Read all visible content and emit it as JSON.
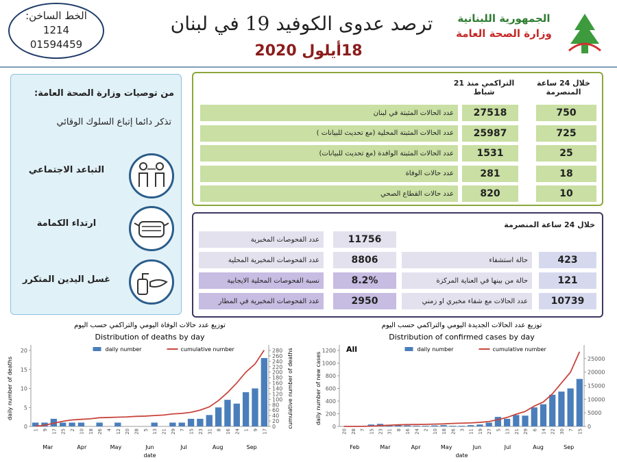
{
  "header": {
    "hotline_label": "الخط الساخن:",
    "hotline_numbers": [
      "1214",
      "01594459"
    ],
    "title": "ترصد عدوى الكوفيد 19 في لبنان",
    "date": "18أيلول 2020",
    "ministry": [
      "الجمهورية اللبنانية",
      "وزارة الصحة العامة"
    ]
  },
  "recommendations": {
    "title": "من توصيات وزارة الصحة العامة:",
    "subtitle": "تذكر دائما إتباع السلوك الوقائي",
    "items": [
      "التباعد الاجتماعي",
      "ارتداء الكمامة",
      "غسل اليدين المتكرر"
    ]
  },
  "table": {
    "headers": [
      "خلال 24 ساعة المنصرمة",
      "التراكمي منذ 21 شباط"
    ],
    "rows": [
      [
        "عدد الحالات المثبتة في لبنان",
        27518,
        750
      ],
      [
        "عدد الحالات المثبتة المحلية (مع تحديث للبيانات )",
        25987,
        725
      ],
      [
        "عدد الحالات المثبتة الوافدة (مع تحديث للبيانات)",
        1531,
        25
      ],
      [
        "عدد حالات الوفاة",
        281,
        18
      ],
      [
        "عدد حالات القطاع الصحي",
        820,
        10
      ]
    ]
  },
  "last24": {
    "title": "خلال 24 ساعة المنصرمة",
    "hospital": [
      [
        "حالة استشفاء",
        423
      ],
      [
        "حالة من بينها في العناية المركزة",
        121
      ],
      [
        "عدد الحالات مع شفاء مخبري او زمني",
        10739
      ]
    ],
    "tests": [
      [
        "عدد الفحوصات المخبرية",
        11756
      ],
      [
        "عدد الفحوصات المخبرية المحلية",
        8806
      ],
      [
        "نسبة الفحوصات المحلية الايجابية",
        "8.2%"
      ],
      [
        "عدد الفحوصات المخبرية في المطار",
        2950
      ]
    ]
  },
  "chart_data": [
    {
      "type": "bar",
      "title_ar": "توزيع عدد حالات  الوفاة اليومي والتراكمي حسب اليوم",
      "title": "Distribution of deaths by day",
      "ylabel": "daily number of deaths",
      "y2label": "cumulative number of deaths",
      "xlabel": "date",
      "months": [
        "Mar",
        "Apr",
        "May",
        "Jun",
        "Jul",
        "Aug",
        "Sep"
      ],
      "categories": [
        "1",
        "9",
        "17",
        "25",
        "2",
        "10",
        "18",
        "26",
        "4",
        "12",
        "20",
        "28",
        "5",
        "13",
        "21",
        "29",
        "7",
        "15",
        "23",
        "31",
        "8",
        "16",
        "24",
        "1",
        "9",
        "17"
      ],
      "series": [
        {
          "name": "daily number",
          "type": "bar",
          "color": "#4a7ebb",
          "values": [
            1,
            1,
            2,
            1,
            1,
            1,
            0,
            1,
            0,
            1,
            0,
            0,
            0,
            1,
            0,
            1,
            1,
            2,
            2,
            3,
            5,
            7,
            6,
            9,
            10,
            18
          ]
        },
        {
          "name": "cumulative number",
          "type": "line",
          "axis": "y2",
          "color": "#c8443c",
          "values": [
            1,
            4,
            12,
            19,
            24,
            26,
            28,
            32,
            33,
            34,
            35,
            37,
            38,
            40,
            42,
            46,
            48,
            52,
            60,
            72,
            95,
            125,
            160,
            200,
            230,
            281
          ]
        }
      ],
      "ylim": [
        0,
        20
      ],
      "yticks": [
        0,
        5,
        10,
        15,
        20
      ],
      "y2lim": [
        0,
        280
      ],
      "y2ticks": [
        0,
        20,
        40,
        60,
        80,
        100,
        120,
        140,
        160,
        180,
        200,
        220,
        240,
        260,
        280
      ],
      "legend": "upper center"
    },
    {
      "type": "bar",
      "title_ar": "توزيع عدد الحالات الجديدة اليومي والتراكمي حسب اليوم",
      "title": "Distribution of confirmed cases by day",
      "label": "All",
      "ylabel": "daily number of new cases",
      "xlabel": "date",
      "months": [
        "Feb",
        "Mar",
        "Apr",
        "May",
        "Jun",
        "Jul",
        "Aug",
        "Sep"
      ],
      "categories": [
        "20",
        "28",
        "7",
        "15",
        "23",
        "31",
        "8",
        "16",
        "24",
        "2",
        "10",
        "18",
        "26",
        "3",
        "11",
        "19",
        "27",
        "5",
        "13",
        "21",
        "29",
        "6",
        "14",
        "22",
        "30",
        "7",
        "15"
      ],
      "series": [
        {
          "name": "daily number",
          "type": "bar",
          "color": "#4a7ebb",
          "values": [
            1,
            2,
            10,
            30,
            40,
            20,
            30,
            15,
            10,
            10,
            15,
            20,
            10,
            10,
            20,
            30,
            60,
            150,
            120,
            180,
            170,
            300,
            350,
            500,
            550,
            600,
            750
          ]
        },
        {
          "name": "cumulative number",
          "type": "line",
          "axis": "y2",
          "color": "#c8443c",
          "values": [
            1,
            4,
            30,
            100,
            300,
            450,
            580,
            680,
            710,
            760,
            850,
            930,
            1100,
            1200,
            1300,
            1500,
            1800,
            2500,
            3300,
            4500,
            5500,
            7500,
            9000,
            12000,
            16000,
            20000,
            27518
          ]
        }
      ],
      "ylim": [
        0,
        1200
      ],
      "yticks": [
        0,
        200,
        400,
        600,
        800,
        1000,
        1200
      ],
      "y2lim": [
        0,
        28000
      ],
      "y2ticks": [
        0,
        5000,
        10000,
        15000,
        20000,
        25000
      ],
      "legend": "upper center"
    }
  ]
}
